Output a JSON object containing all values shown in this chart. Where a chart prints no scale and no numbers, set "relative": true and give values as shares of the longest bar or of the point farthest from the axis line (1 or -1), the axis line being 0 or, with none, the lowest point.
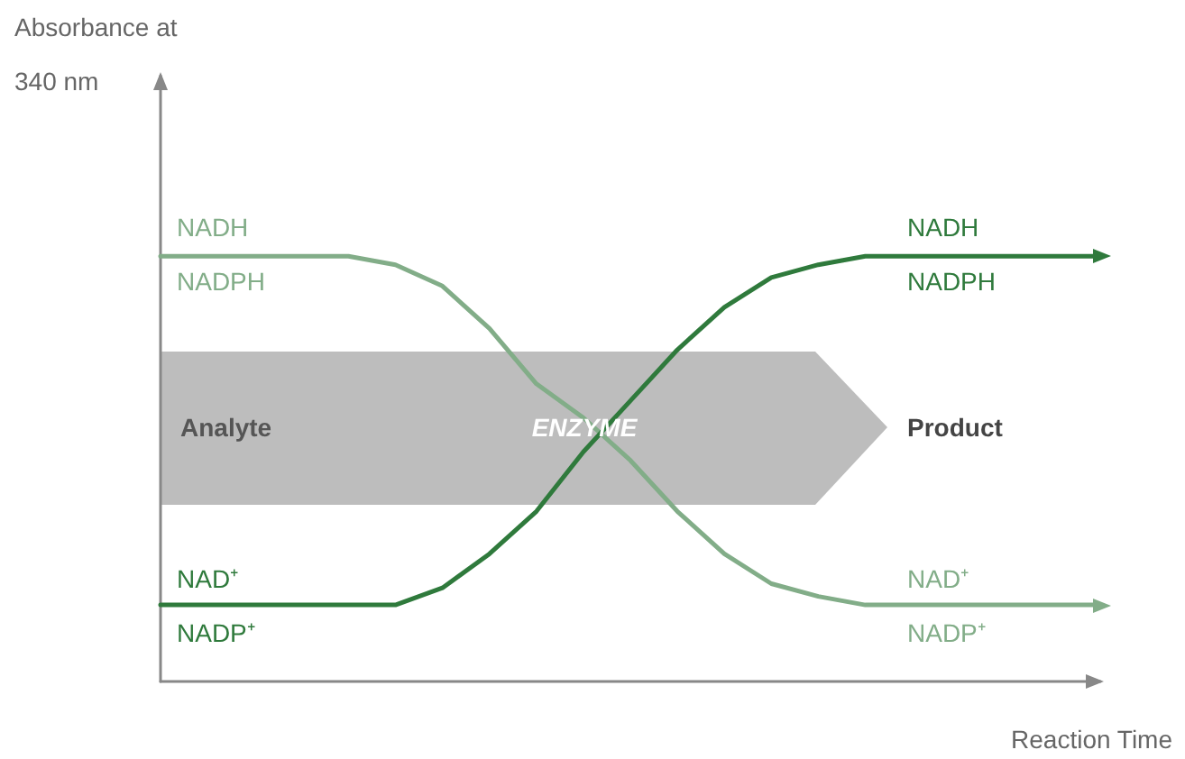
{
  "chart_data": {
    "type": "line",
    "relative": true,
    "xlabel": "Reaction Time",
    "grid": false,
    "categories": [
      null,
      null,
      null,
      null,
      null,
      null,
      null,
      null,
      null,
      null,
      null,
      null,
      null,
      null,
      null,
      null,
      null,
      null,
      null,
      null,
      null
    ],
    "series": [
      {
        "color": "#82ad88",
        "values": [
          1,
          1,
          1,
          1,
          1,
          0.98,
          0.93,
          0.83,
          0.7,
          0.62,
          0.52,
          0.4,
          0.3,
          0.23,
          0.2,
          0.18,
          0.18,
          0.18,
          0.18,
          0.18,
          0.18
        ]
      },
      {
        "color": "#2f7a3c",
        "values": [
          0.18,
          0.18,
          0.18,
          0.18,
          0.18,
          0.18,
          0.22,
          0.3,
          0.4,
          0.54,
          0.66,
          0.78,
          0.88,
          0.95,
          0.98,
          1,
          1,
          1,
          1,
          1,
          1
        ]
      }
    ],
    "annotations": [
      "Absorbance at 340 nm",
      "NADH",
      "NADPH",
      "NAD⁺",
      "NADP⁺",
      "NADH",
      "NADPH",
      "NAD⁺",
      "NADP⁺",
      "Analyte",
      "ENZYME",
      "Product"
    ]
  }
}
